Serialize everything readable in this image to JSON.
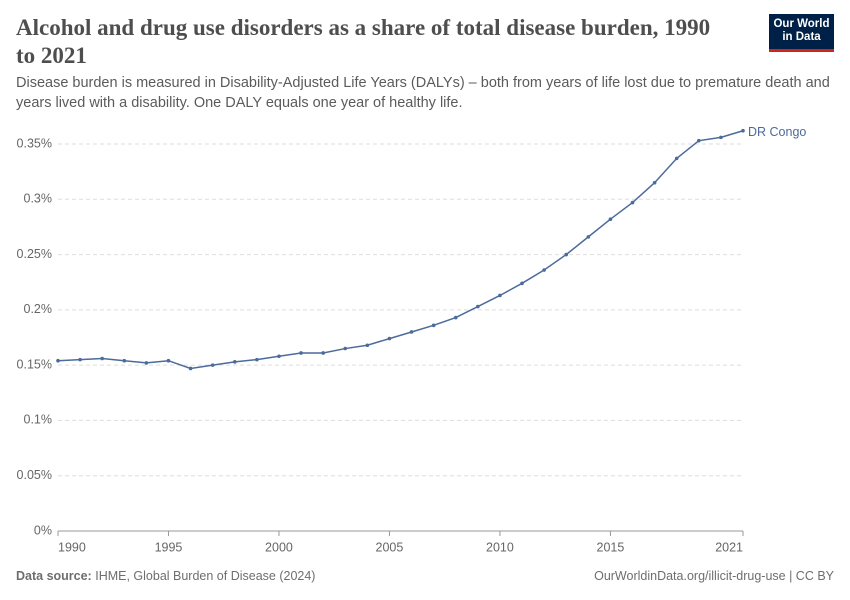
{
  "chart_data": {
    "type": "line",
    "title": "Alcohol and drug use disorders as a share of total disease burden, 1990 to 2021",
    "subtitle": "Disease burden is measured in Disability-Adjusted Life Years (DALYs) – both from years of life lost due to premature death and years lived with a disability. One DALY equals one year of healthy life.",
    "x": [
      1990,
      1991,
      1992,
      1993,
      1994,
      1995,
      1996,
      1997,
      1998,
      1999,
      2000,
      2001,
      2002,
      2003,
      2004,
      2005,
      2006,
      2007,
      2008,
      2009,
      2010,
      2011,
      2012,
      2013,
      2014,
      2015,
      2016,
      2017,
      2018,
      2019,
      2020,
      2021
    ],
    "series": [
      {
        "name": "DR Congo",
        "color": "#4c6a9c",
        "values": [
          0.154,
          0.155,
          0.156,
          0.154,
          0.152,
          0.154,
          0.147,
          0.15,
          0.153,
          0.155,
          0.158,
          0.161,
          0.161,
          0.165,
          0.168,
          0.174,
          0.18,
          0.186,
          0.193,
          0.203,
          0.213,
          0.224,
          0.236,
          0.25,
          0.266,
          0.282,
          0.297,
          0.315,
          0.337,
          0.353,
          0.356,
          0.362
        ]
      }
    ],
    "xlim": [
      1990,
      2021
    ],
    "xticks": [
      1990,
      1995,
      2000,
      2005,
      2010,
      2015,
      2021
    ],
    "ylim": [
      0,
      0.35
    ],
    "yticks": [
      {
        "value": 0,
        "label": "0%"
      },
      {
        "value": 0.05,
        "label": "0.05%"
      },
      {
        "value": 0.1,
        "label": "0.1%"
      },
      {
        "value": 0.15,
        "label": "0.15%"
      },
      {
        "value": 0.2,
        "label": "0.2%"
      },
      {
        "value": 0.25,
        "label": "0.25%"
      },
      {
        "value": 0.3,
        "label": "0.3%"
      },
      {
        "value": 0.35,
        "label": "0.35%"
      }
    ],
    "grid": true
  },
  "page": {
    "logo": [
      "Our World",
      "in Data"
    ],
    "source_label": "Data source:",
    "source": "IHME, Global Burden of Disease (2024)",
    "credit": "OurWorldinData.org/illicit-drug-use | CC BY"
  }
}
